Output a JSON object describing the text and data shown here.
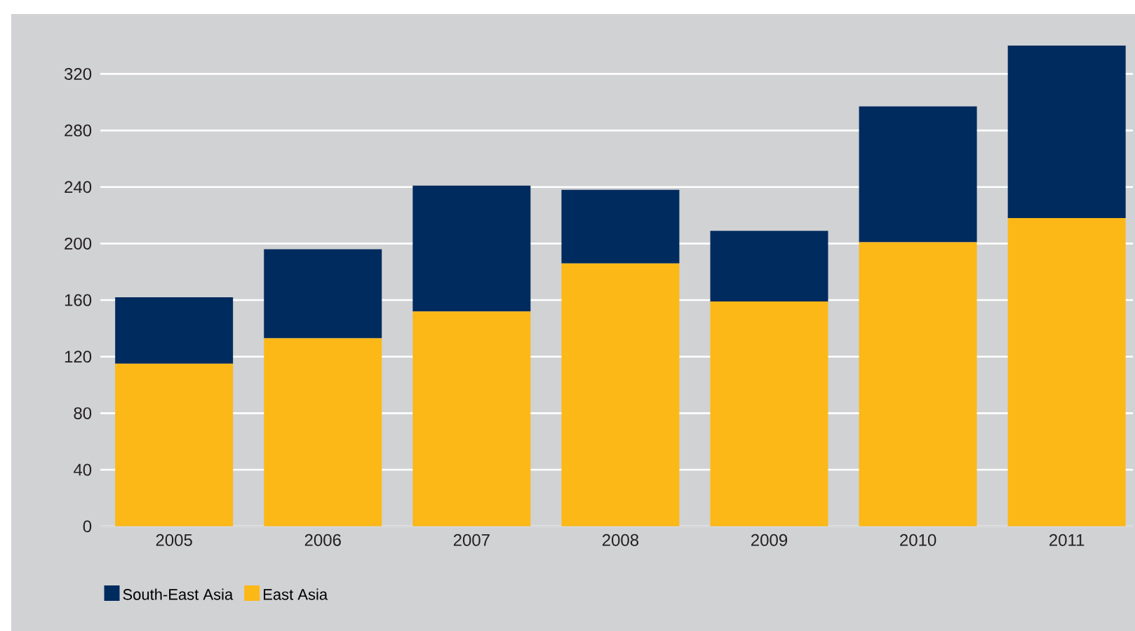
{
  "chart_data": {
    "type": "bar",
    "stacked": true,
    "categories": [
      "2005",
      "2006",
      "2007",
      "2008",
      "2009",
      "2010",
      "2011"
    ],
    "series": [
      {
        "name": "East Asia",
        "color": "#fbb817",
        "values": [
          115,
          133,
          152,
          186,
          159,
          201,
          218
        ]
      },
      {
        "name": "South-East Asia",
        "color": "#002b5e",
        "values": [
          47,
          63,
          89,
          52,
          50,
          96,
          122
        ]
      }
    ],
    "ylim": [
      0,
      360
    ],
    "yticks": [
      0,
      40,
      80,
      120,
      160,
      200,
      240,
      280,
      320
    ],
    "grid": "y",
    "legend": "bottom"
  }
}
